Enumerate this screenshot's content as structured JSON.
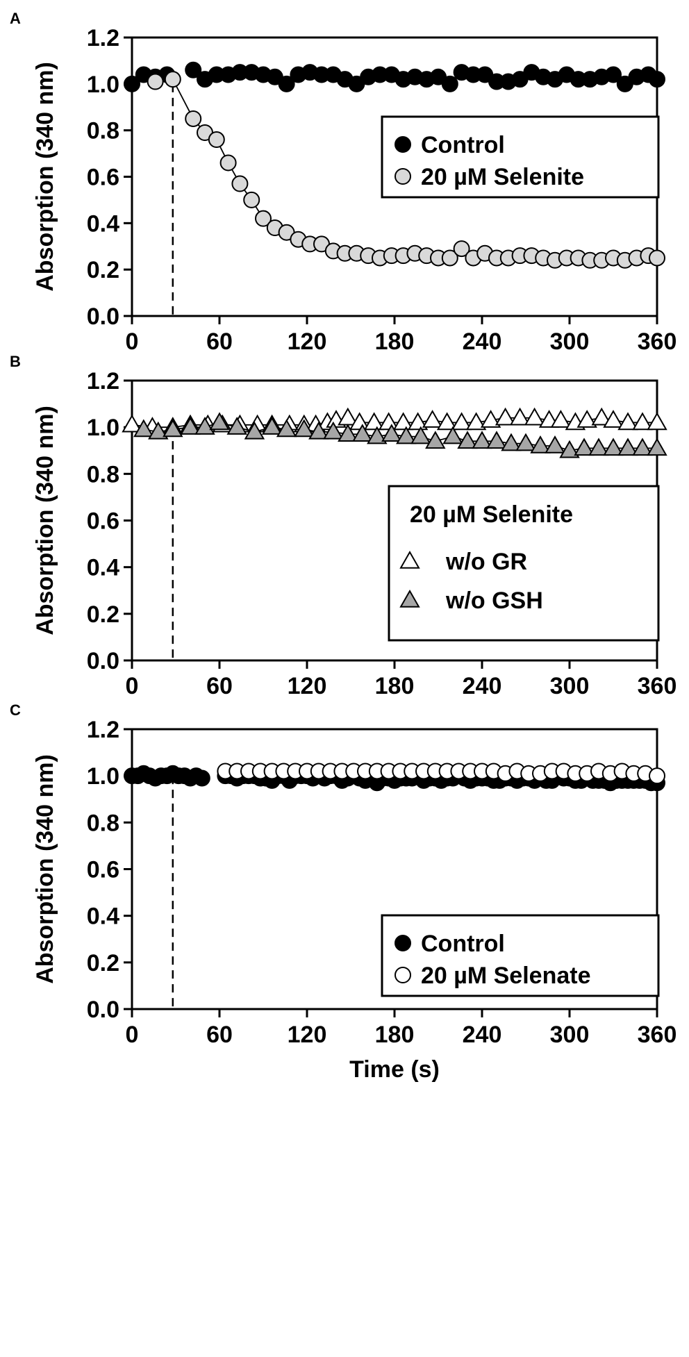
{
  "chart_data": [
    {
      "panel": "A",
      "type": "scatter",
      "ylabel": "Absorption (340 nm)",
      "xlabel": "",
      "xlim": [
        0,
        360
      ],
      "ylim": [
        0,
        1.2
      ],
      "xticks": [
        "0",
        "60",
        "120",
        "180",
        "240",
        "300",
        "360"
      ],
      "yticks": [
        "0.0",
        "0.2",
        "0.4",
        "0.6",
        "0.8",
        "1.0",
        "1.2"
      ],
      "marker_line": 28,
      "legend": {
        "placement": "right-middle",
        "title": ""
      },
      "series": [
        {
          "name": "Control",
          "marker": "circle",
          "fill": "#000000",
          "x": [
            0,
            8,
            16,
            24,
            42,
            50,
            58,
            66,
            74,
            82,
            90,
            98,
            106,
            114,
            122,
            130,
            138,
            146,
            154,
            162,
            170,
            178,
            186,
            194,
            202,
            210,
            218,
            226,
            234,
            242,
            250,
            258,
            266,
            274,
            282,
            290,
            298,
            306,
            314,
            322,
            330,
            338,
            346,
            354,
            360
          ],
          "y": [
            1.0,
            1.04,
            1.03,
            1.04,
            1.06,
            1.02,
            1.04,
            1.04,
            1.05,
            1.05,
            1.04,
            1.03,
            1.0,
            1.04,
            1.05,
            1.04,
            1.04,
            1.02,
            1.0,
            1.03,
            1.04,
            1.04,
            1.02,
            1.03,
            1.02,
            1.03,
            1.0,
            1.05,
            1.04,
            1.04,
            1.01,
            1.01,
            1.02,
            1.05,
            1.03,
            1.02,
            1.04,
            1.02,
            1.02,
            1.03,
            1.04,
            1.0,
            1.03,
            1.04,
            1.02
          ]
        },
        {
          "name": "20 µM Selenite",
          "marker": "circle",
          "fill": "#d9d9d9",
          "line": true,
          "x": [
            16,
            28,
            42,
            50,
            58,
            66,
            74,
            82,
            90,
            98,
            106,
            114,
            122,
            130,
            138,
            146,
            154,
            162,
            170,
            178,
            186,
            194,
            202,
            210,
            218,
            226,
            234,
            242,
            250,
            258,
            266,
            274,
            282,
            290,
            298,
            306,
            314,
            322,
            330,
            338,
            346,
            354,
            360
          ],
          "y": [
            1.01,
            1.02,
            0.85,
            0.79,
            0.76,
            0.66,
            0.57,
            0.5,
            0.42,
            0.38,
            0.36,
            0.33,
            0.31,
            0.31,
            0.28,
            0.27,
            0.27,
            0.26,
            0.25,
            0.26,
            0.26,
            0.27,
            0.26,
            0.25,
            0.25,
            0.29,
            0.25,
            0.27,
            0.25,
            0.25,
            0.26,
            0.26,
            0.25,
            0.24,
            0.25,
            0.25,
            0.24,
            0.24,
            0.25,
            0.24,
            0.25,
            0.26,
            0.25
          ]
        }
      ]
    },
    {
      "panel": "B",
      "type": "scatter",
      "ylabel": "Absorption (340 nm)",
      "xlabel": "",
      "xlim": [
        0,
        360
      ],
      "ylim": [
        0,
        1.2
      ],
      "xticks": [
        "0",
        "60",
        "120",
        "180",
        "240",
        "300",
        "360"
      ],
      "yticks": [
        "0.0",
        "0.2",
        "0.4",
        "0.6",
        "0.8",
        "1.0",
        "1.2"
      ],
      "marker_line": 28,
      "legend": {
        "placement": "right-bottom",
        "title": "20 µM Selenite"
      },
      "series": [
        {
          "name": "w/o GR",
          "marker": "triangle",
          "fill": "#ffffff",
          "line": true,
          "x": [
            0,
            14,
            28,
            40,
            52,
            62,
            74,
            86,
            96,
            108,
            118,
            126,
            134,
            140,
            148,
            156,
            166,
            176,
            186,
            196,
            206,
            216,
            226,
            236,
            246,
            256,
            266,
            276,
            286,
            294,
            304,
            312,
            322,
            330,
            340,
            350,
            360
          ],
          "y": [
            1.01,
            1.0,
            1.0,
            1.01,
            1.01,
            1.01,
            1.01,
            1.01,
            1.01,
            1.01,
            1.01,
            1.01,
            1.02,
            1.03,
            1.04,
            1.02,
            1.02,
            1.02,
            1.02,
            1.02,
            1.03,
            1.02,
            1.02,
            1.02,
            1.03,
            1.04,
            1.04,
            1.04,
            1.03,
            1.03,
            1.02,
            1.03,
            1.04,
            1.03,
            1.02,
            1.02,
            1.02
          ]
        },
        {
          "name": "w/o GSH",
          "marker": "triangle",
          "fill": "#a6a6a6",
          "line": true,
          "x": [
            8,
            18,
            28,
            40,
            50,
            60,
            72,
            84,
            96,
            106,
            118,
            128,
            138,
            148,
            158,
            168,
            178,
            188,
            198,
            208,
            220,
            230,
            240,
            250,
            260,
            270,
            280,
            290,
            300,
            310,
            320,
            330,
            340,
            350,
            360
          ],
          "y": [
            0.99,
            0.98,
            0.99,
            1.0,
            1.0,
            1.02,
            1.0,
            0.98,
            1.0,
            0.99,
            0.99,
            0.98,
            0.98,
            0.97,
            0.97,
            0.96,
            0.97,
            0.96,
            0.96,
            0.94,
            0.96,
            0.94,
            0.94,
            0.94,
            0.93,
            0.93,
            0.92,
            0.92,
            0.9,
            0.91,
            0.91,
            0.91,
            0.91,
            0.91,
            0.91
          ]
        }
      ]
    },
    {
      "panel": "C",
      "type": "scatter",
      "ylabel": "Absorption (340 nm)",
      "xlabel": "Time (s)",
      "xlim": [
        0,
        360
      ],
      "ylim": [
        0,
        1.2
      ],
      "xticks": [
        "0",
        "60",
        "120",
        "180",
        "240",
        "300",
        "360"
      ],
      "yticks": [
        "0.0",
        "0.2",
        "0.4",
        "0.6",
        "0.8",
        "1.0",
        "1.2"
      ],
      "marker_line": 28,
      "legend": {
        "placement": "right-bottom",
        "title": ""
      },
      "series": [
        {
          "name": "Control",
          "marker": "circle",
          "fill": "#000000",
          "x": [
            0,
            4,
            8,
            12,
            16,
            20,
            24,
            28,
            32,
            36,
            40,
            44,
            48,
            64,
            68,
            72,
            76,
            80,
            84,
            88,
            92,
            96,
            100,
            104,
            108,
            112,
            116,
            120,
            124,
            128,
            132,
            136,
            140,
            144,
            148,
            152,
            156,
            160,
            164,
            168,
            172,
            176,
            180,
            184,
            188,
            192,
            196,
            200,
            204,
            208,
            212,
            216,
            220,
            224,
            228,
            232,
            236,
            240,
            244,
            248,
            252,
            256,
            260,
            264,
            268,
            272,
            276,
            280,
            284,
            288,
            292,
            296,
            300,
            304,
            308,
            312,
            316,
            320,
            324,
            328,
            332,
            336,
            340,
            344,
            348,
            352,
            356,
            360
          ],
          "y": [
            1.0,
            1.0,
            1.01,
            1.0,
            0.99,
            1.0,
            1.0,
            1.01,
            1.0,
            1.0,
            0.99,
            1.0,
            0.99,
            1.0,
            1.0,
            0.99,
            1.0,
            1.0,
            1.0,
            0.99,
            0.99,
            0.98,
            1.0,
            1.0,
            0.98,
            1.0,
            1.0,
            1.0,
            0.99,
            1.0,
            0.99,
            1.0,
            1.0,
            0.98,
            0.99,
            1.0,
            0.99,
            0.98,
            0.99,
            0.97,
            0.99,
            0.99,
            0.98,
            0.99,
            0.99,
            0.99,
            1.0,
            0.98,
            0.99,
            0.99,
            0.98,
            0.99,
            0.99,
            1.0,
            0.99,
            0.98,
            0.99,
            0.99,
            0.99,
            0.98,
            0.98,
            0.99,
            0.99,
            0.98,
            0.99,
            0.99,
            0.98,
            0.99,
            0.98,
            0.98,
            1.0,
            0.99,
            0.99,
            0.98,
            0.98,
            0.99,
            0.98,
            0.98,
            0.98,
            0.97,
            0.98,
            0.98,
            0.98,
            0.98,
            0.98,
            0.98,
            0.97,
            0.97
          ]
        },
        {
          "name": "20 µM Selenate",
          "marker": "circle",
          "fill": "#ffffff",
          "x": [
            64,
            72,
            80,
            88,
            96,
            104,
            112,
            120,
            128,
            136,
            144,
            152,
            160,
            168,
            176,
            184,
            192,
            200,
            208,
            216,
            224,
            232,
            240,
            248,
            256,
            264,
            272,
            280,
            288,
            296,
            304,
            312,
            320,
            328,
            336,
            344,
            352,
            360
          ],
          "y": [
            1.02,
            1.02,
            1.02,
            1.02,
            1.02,
            1.02,
            1.02,
            1.02,
            1.02,
            1.02,
            1.02,
            1.02,
            1.02,
            1.02,
            1.02,
            1.02,
            1.02,
            1.02,
            1.02,
            1.02,
            1.02,
            1.02,
            1.02,
            1.02,
            1.01,
            1.02,
            1.01,
            1.01,
            1.02,
            1.02,
            1.01,
            1.01,
            1.02,
            1.01,
            1.02,
            1.01,
            1.01,
            1.0
          ]
        }
      ]
    }
  ]
}
